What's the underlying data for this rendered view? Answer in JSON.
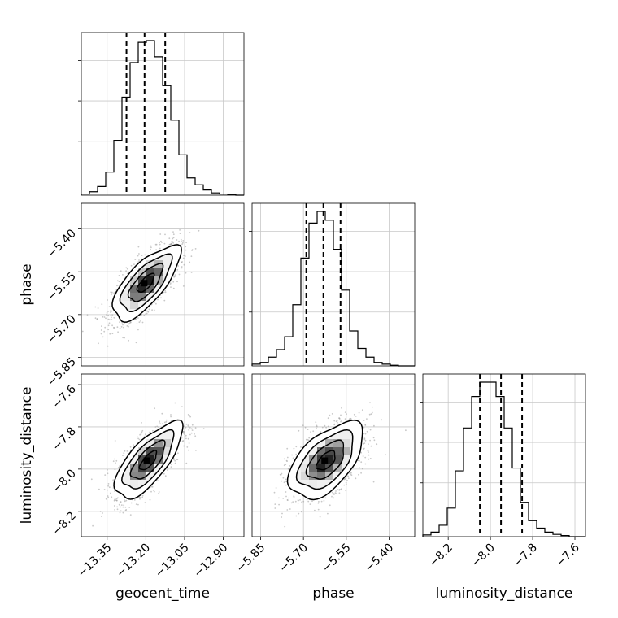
{
  "chart_data": {
    "type": "corner",
    "grid": true,
    "parameters": [
      {
        "name": "geocent_time",
        "label": "geocent_time",
        "range": [
          -13.45,
          -12.82
        ],
        "ticks": [
          -13.35,
          -13.2,
          -13.05,
          -12.9
        ],
        "tick_labels": [
          "−13.35",
          "−13.20",
          "−13.05",
          "−12.90"
        ],
        "quantiles": [
          -13.275,
          -13.205,
          -13.125
        ]
      },
      {
        "name": "phase",
        "label": "phase",
        "range": [
          -5.88,
          -5.31
        ],
        "ticks": [
          -5.85,
          -5.7,
          -5.55,
          -5.4
        ],
        "tick_labels": [
          "−5.85",
          "−5.70",
          "−5.55",
          "−5.40"
        ],
        "quantiles": [
          -5.69,
          -5.63,
          -5.57
        ]
      },
      {
        "name": "luminosity_distance",
        "label": "luminosity_distance",
        "range": [
          -8.32,
          -7.55
        ],
        "ticks": [
          -8.2,
          -8.0,
          -7.8,
          -7.6
        ],
        "tick_labels": [
          "−8.2",
          "−8.0",
          "−7.8",
          "−7.6"
        ],
        "quantiles": [
          -8.05,
          -7.95,
          -7.85
        ]
      }
    ],
    "histograms": [
      {
        "param": "geocent_time",
        "edges_range": [
          -13.45,
          -12.82
        ],
        "bins": 20,
        "counts": [
          2,
          6,
          15,
          40,
          95,
          170,
          230,
          265,
          268,
          240,
          190,
          130,
          70,
          30,
          18,
          9,
          4,
          2,
          1,
          0
        ]
      },
      {
        "param": "phase",
        "edges_range": [
          -5.88,
          -5.31
        ],
        "bins": 20,
        "counts": [
          3,
          6,
          15,
          28,
          50,
          105,
          185,
          245,
          265,
          250,
          200,
          130,
          60,
          30,
          15,
          6,
          3,
          1,
          0,
          0
        ]
      },
      {
        "param": "luminosity_distance",
        "edges_range": [
          -8.32,
          -7.55
        ],
        "bins": 20,
        "counts": [
          3,
          8,
          20,
          50,
          115,
          190,
          245,
          270,
          270,
          245,
          190,
          120,
          60,
          28,
          15,
          8,
          4,
          2,
          0,
          0
        ]
      }
    ],
    "pairs": [
      {
        "x": "geocent_time",
        "y": "phase",
        "mean": [
          -13.2,
          -5.59
        ],
        "sd": [
          0.065,
          0.065
        ],
        "corr": 0.72
      },
      {
        "x": "geocent_time",
        "y": "luminosity_distance",
        "mean": [
          -13.19,
          -7.96
        ],
        "sd": [
          0.065,
          0.09
        ],
        "corr": 0.72
      },
      {
        "x": "phase",
        "y": "luminosity_distance",
        "mean": [
          -5.62,
          -7.96
        ],
        "sd": [
          0.065,
          0.09
        ],
        "corr": 0.55
      }
    ],
    "contour_levels_sigma": [
      0.5,
      1.0,
      1.5,
      2.0
    ]
  }
}
